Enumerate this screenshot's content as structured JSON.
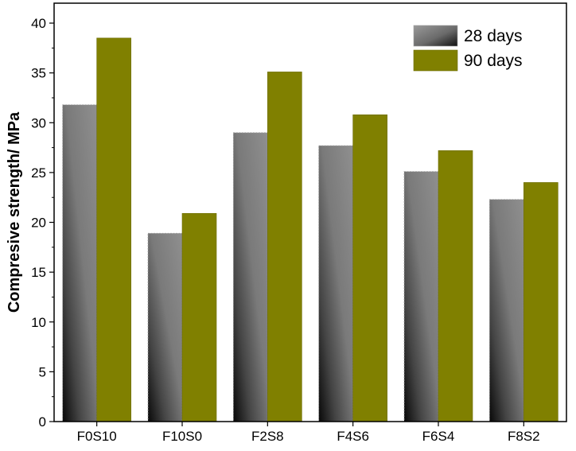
{
  "chart_data": {
    "type": "bar",
    "title": "",
    "xlabel": "",
    "ylabel": "Compresive strength/ MPa",
    "categories": [
      "F0S10",
      "F10S0",
      "F2S8",
      "F4S6",
      "F6S4",
      "F8S2"
    ],
    "series": [
      {
        "name": "28 days",
        "values": [
          31.8,
          18.9,
          29.0,
          27.7,
          25.1,
          22.3
        ],
        "color": "#6e6e6e"
      },
      {
        "name": "90 days",
        "values": [
          38.5,
          20.9,
          35.1,
          30.8,
          27.2,
          24.0
        ],
        "color": "#808000"
      }
    ],
    "ylim": [
      0,
      42
    ],
    "yticks": [
      0,
      5,
      10,
      15,
      20,
      25,
      30,
      35,
      40
    ],
    "grid": false,
    "legend_position": "top-right"
  }
}
